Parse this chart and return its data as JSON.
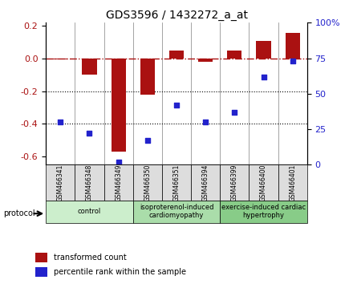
{
  "title": "GDS3596 / 1432272_a_at",
  "samples": [
    "GSM466341",
    "GSM466348",
    "GSM466349",
    "GSM466350",
    "GSM466351",
    "GSM466394",
    "GSM466399",
    "GSM466400",
    "GSM466401"
  ],
  "bar_values": [
    -0.005,
    -0.1,
    -0.57,
    -0.22,
    0.05,
    -0.02,
    0.05,
    0.11,
    0.16
  ],
  "scatter_values": [
    30,
    22,
    2,
    17,
    42,
    30,
    37,
    62,
    73
  ],
  "bar_color": "#aa1111",
  "scatter_color": "#2222cc",
  "ylim_left": [
    -0.65,
    0.22
  ],
  "ylim_right": [
    0,
    100
  ],
  "yticks_left": [
    0.2,
    0.0,
    -0.2,
    -0.4,
    -0.6
  ],
  "yticks_right": [
    100,
    75,
    50,
    25,
    0
  ],
  "groups": [
    {
      "label": "control",
      "start": 0,
      "end": 3,
      "color": "#cceecc"
    },
    {
      "label": "isoproterenol-induced\ncardiomyopathy",
      "start": 3,
      "end": 6,
      "color": "#aaddaa"
    },
    {
      "label": "exercise-induced cardiac\nhypertrophy",
      "start": 6,
      "end": 9,
      "color": "#88cc88"
    }
  ],
  "protocol_label": "protocol",
  "legend_bar_label": "transformed count",
  "legend_scatter_label": "percentile rank within the sample",
  "hline_y": 0.0,
  "dotted_lines": [
    -0.2,
    -0.4
  ],
  "bar_width": 0.5
}
